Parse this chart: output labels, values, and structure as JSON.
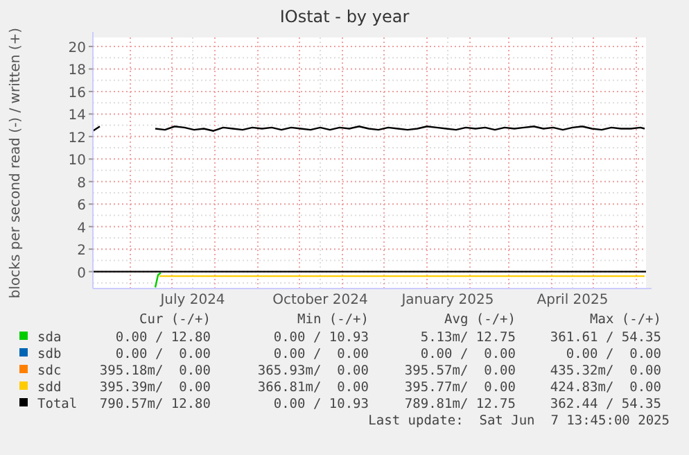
{
  "chart_data": {
    "type": "line",
    "title": "IOstat - by year",
    "ylabel": "blocks per second read (-) / written (+)",
    "xlim": [
      "2024-05-05",
      "2025-06-08"
    ],
    "xticks": [
      {
        "value": "2024-06-01",
        "label": null
      },
      {
        "value": "2024-07-01",
        "label": null
      },
      {
        "value": "2024-07-16",
        "label": "July 2024"
      },
      {
        "value": "2024-08-01",
        "label": null
      },
      {
        "value": "2024-09-01",
        "label": null
      },
      {
        "value": "2024-10-01",
        "label": null
      },
      {
        "value": "2024-10-16",
        "label": "October 2024"
      },
      {
        "value": "2024-11-01",
        "label": null
      },
      {
        "value": "2024-12-01",
        "label": null
      },
      {
        "value": "2025-01-01",
        "label": null
      },
      {
        "value": "2025-01-16",
        "label": "January 2025"
      },
      {
        "value": "2025-02-01",
        "label": null
      },
      {
        "value": "2025-03-01",
        "label": null
      },
      {
        "value": "2025-04-01",
        "label": null
      },
      {
        "value": "2025-04-16",
        "label": "April 2025"
      },
      {
        "value": "2025-05-01",
        "label": null
      },
      {
        "value": "2025-06-01",
        "label": null
      }
    ],
    "ylim": [
      -1.5,
      20.8
    ],
    "yticks": [
      0,
      2,
      4,
      6,
      8,
      10,
      12,
      14,
      16,
      18,
      20
    ],
    "grid": true,
    "legend": "bottom",
    "ref_lines": [
      {
        "axis": "y",
        "value": 0,
        "color": "#000000"
      }
    ],
    "series": [
      {
        "name": "sda",
        "color": "#00cc00",
        "x": [
          "2024-06-19",
          "2024-06-21",
          "2024-06-23"
        ],
        "values": [
          -1.4,
          -0.3,
          -0.1
        ]
      },
      {
        "name": "sdb",
        "color": "#0066b3"
      },
      {
        "name": "sdc",
        "color": "#ff8000"
      },
      {
        "name": "sdd",
        "color": "#ffcc00",
        "x": [
          "2024-06-22",
          "2025-06-07"
        ],
        "values": [
          -0.4,
          -0.4
        ]
      },
      {
        "name": "Total",
        "color": "#000000",
        "x": [
          "2024-05-05",
          "2024-05-10",
          "2024-05-12",
          "2024-06-19",
          "2024-06-26",
          "2024-07-03",
          "2024-07-10",
          "2024-07-17",
          "2024-07-24",
          "2024-07-31",
          "2024-08-07",
          "2024-08-14",
          "2024-08-21",
          "2024-08-28",
          "2024-09-04",
          "2024-09-11",
          "2024-09-18",
          "2024-09-25",
          "2024-10-02",
          "2024-10-09",
          "2024-10-16",
          "2024-10-23",
          "2024-10-30",
          "2024-11-06",
          "2024-11-13",
          "2024-11-20",
          "2024-11-27",
          "2024-12-04",
          "2024-12-11",
          "2024-12-18",
          "2024-12-25",
          "2025-01-01",
          "2025-01-08",
          "2025-01-15",
          "2025-01-22",
          "2025-01-29",
          "2025-02-05",
          "2025-02-12",
          "2025-02-19",
          "2025-02-26",
          "2025-03-05",
          "2025-03-12",
          "2025-03-19",
          "2025-03-26",
          "2025-04-02",
          "2025-04-09",
          "2025-04-16",
          "2025-04-23",
          "2025-04-30",
          "2025-05-07",
          "2025-05-14",
          "2025-05-21",
          "2025-05-28",
          "2025-06-04",
          "2025-06-07"
        ],
        "values": [
          12.5,
          12.9,
          null,
          12.7,
          12.6,
          12.9,
          12.8,
          12.6,
          12.7,
          12.5,
          12.8,
          12.7,
          12.6,
          12.8,
          12.7,
          12.8,
          12.6,
          12.8,
          12.7,
          12.6,
          12.8,
          12.6,
          12.8,
          12.7,
          12.9,
          12.7,
          12.6,
          12.8,
          12.7,
          12.6,
          12.7,
          12.9,
          12.8,
          12.7,
          12.6,
          12.8,
          12.7,
          12.8,
          12.6,
          12.8,
          12.7,
          12.8,
          12.9,
          12.7,
          12.8,
          12.6,
          12.8,
          12.9,
          12.7,
          12.6,
          12.8,
          12.7,
          12.7,
          12.8,
          12.7
        ]
      }
    ],
    "annotations": [
      "Cur (-/+)",
      "Min (-/+)",
      "Avg (-/+)",
      "Max (-/+)",
      "0.00 / 12.80",
      "0.00 / 10.93",
      "5.13m/ 12.75",
      "361.61 / 54.35",
      "0.00 /  0.00",
      "0.00 /  0.00",
      "0.00 /  0.00",
      "0.00 /  0.00",
      "395.18m/  0.00",
      "365.93m/  0.00",
      "395.57m/  0.00",
      "435.32m/  0.00",
      "395.39m/  0.00",
      "366.81m/  0.00",
      "395.77m/  0.00",
      "424.83m/  0.00",
      "790.57m/ 12.80",
      "0.00 / 10.93",
      "789.81m/ 12.75",
      "362.44 / 54.35",
      "Last update:  Sat Jun  7 13:45:00 2025"
    ]
  }
}
